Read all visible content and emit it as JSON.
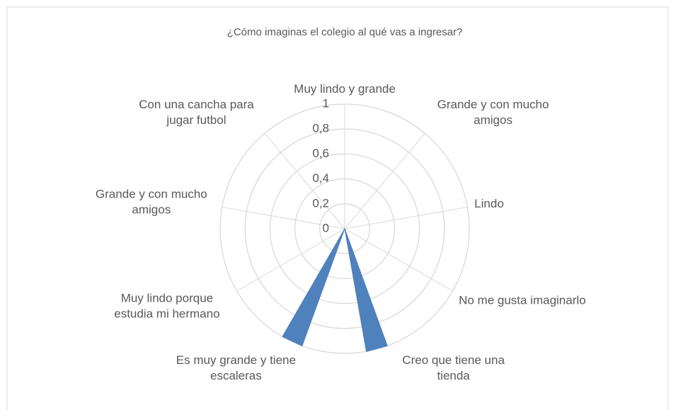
{
  "chart_data": {
    "type": "radar",
    "title": "¿Cómo imaginas el colegio al qué vas a ingresar?",
    "categories": [
      "Muy lindo y grande",
      null,
      null,
      null,
      "Grande y con mucho amigos",
      null,
      null,
      null,
      "Lindo",
      null,
      null,
      null,
      "No me gusta imaginarlo",
      null,
      null,
      null,
      "Creo que tiene una tienda",
      null,
      null,
      null,
      "Es muy grande y tiene escaleras",
      null,
      null,
      null,
      "Muy lindo porque estudia mi hermano",
      null,
      null,
      null,
      "Grande y con mucho amigos",
      null,
      null,
      null,
      "Con una cancha para jugar futbol",
      null,
      null,
      null
    ],
    "values": [
      0,
      0,
      0,
      0,
      0,
      0,
      0,
      0,
      0,
      0,
      0,
      0,
      0,
      0,
      0,
      0,
      1,
      1,
      0,
      0,
      1,
      1,
      0,
      0,
      0,
      0,
      0,
      0,
      0,
      0,
      0,
      0,
      0,
      0,
      0,
      0
    ],
    "color": "#4f81bd",
    "ylim": [
      0,
      1
    ],
    "yticks": [
      0,
      {
        "value": 0.2,
        "label": "0,2"
      },
      {
        "value": 0.4,
        "label": "0,4"
      },
      {
        "value": 0.6,
        "label": "0,6"
      },
      {
        "value": 0.8,
        "label": "0,8"
      },
      1
    ],
    "grid": true
  }
}
